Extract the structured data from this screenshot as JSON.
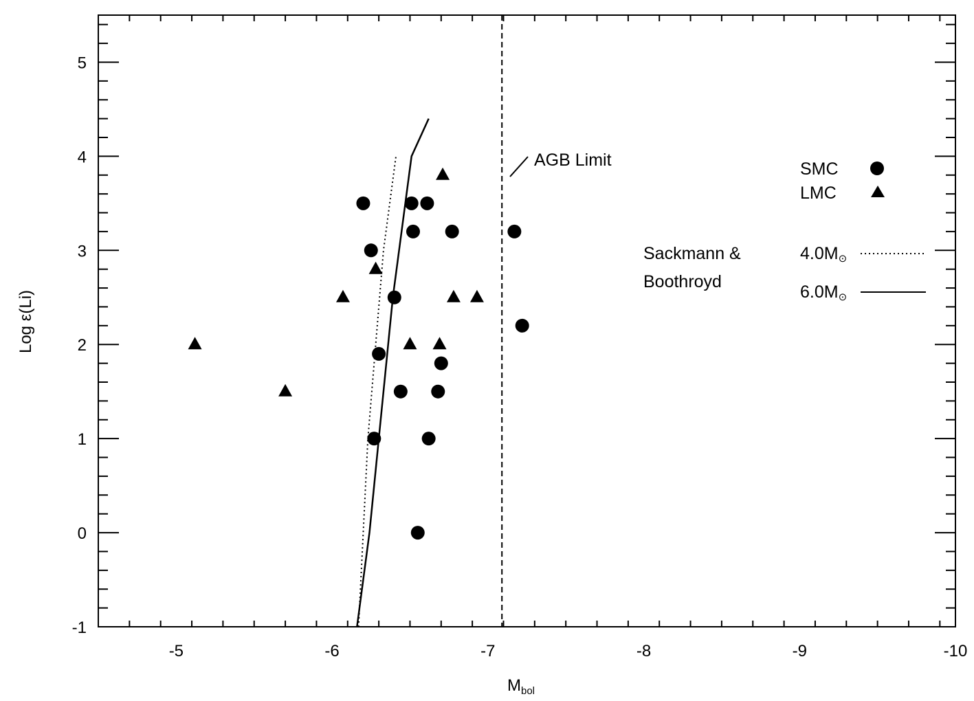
{
  "chart_data": {
    "type": "scatter",
    "title": "",
    "xlabel_main": "M",
    "xlabel_sub": "bol",
    "ylabel": "Log ε(Li)",
    "xlim": [
      -4.5,
      -10
    ],
    "ylim": [
      -1,
      5.5
    ],
    "x_ticks": [
      -5,
      -6,
      -7,
      -8,
      -9,
      -10
    ],
    "y_ticks": [
      -1,
      0,
      1,
      2,
      3,
      4,
      5
    ],
    "x_tick_labels": [
      "-5",
      "-6",
      "-7",
      "-8",
      "-9",
      "-10"
    ],
    "y_tick_labels": [
      "-1",
      "0",
      "1",
      "2",
      "3",
      "4",
      "5"
    ],
    "grid": false,
    "legend_position": "right",
    "series": [
      {
        "name": "SMC",
        "marker": "circle",
        "points": [
          {
            "x": -6.2,
            "y": 3.5
          },
          {
            "x": -6.51,
            "y": 3.5
          },
          {
            "x": -6.61,
            "y": 3.5
          },
          {
            "x": -6.25,
            "y": 3.0
          },
          {
            "x": -6.52,
            "y": 3.2
          },
          {
            "x": -6.77,
            "y": 3.2
          },
          {
            "x": -7.17,
            "y": 3.2
          },
          {
            "x": -6.4,
            "y": 2.5
          },
          {
            "x": -7.22,
            "y": 2.2
          },
          {
            "x": -6.3,
            "y": 1.9
          },
          {
            "x": -6.7,
            "y": 1.8
          },
          {
            "x": -6.44,
            "y": 1.5
          },
          {
            "x": -6.68,
            "y": 1.5
          },
          {
            "x": -6.27,
            "y": 1.0
          },
          {
            "x": -6.62,
            "y": 1.0
          },
          {
            "x": -6.55,
            "y": 0.0
          }
        ]
      },
      {
        "name": "LMC",
        "marker": "triangle",
        "points": [
          {
            "x": -6.71,
            "y": 3.8
          },
          {
            "x": -6.28,
            "y": 2.8
          },
          {
            "x": -6.07,
            "y": 2.5
          },
          {
            "x": -6.78,
            "y": 2.5
          },
          {
            "x": -6.93,
            "y": 2.5
          },
          {
            "x": -5.12,
            "y": 2.0
          },
          {
            "x": -6.5,
            "y": 2.0
          },
          {
            "x": -6.69,
            "y": 2.0
          },
          {
            "x": -5.7,
            "y": 1.5
          }
        ]
      }
    ],
    "model_lines": [
      {
        "name": "4.0M",
        "style": "dotted",
        "points": [
          {
            "x": -6.17,
            "y": -1.0
          },
          {
            "x": -6.23,
            "y": 1.0
          },
          {
            "x": -6.33,
            "y": 3.0
          },
          {
            "x": -6.41,
            "y": 4.0
          }
        ]
      },
      {
        "name": "6.0M",
        "style": "solid",
        "points": [
          {
            "x": -6.16,
            "y": -1.0
          },
          {
            "x": -6.24,
            "y": 0.0
          },
          {
            "x": -6.3,
            "y": 1.0
          },
          {
            "x": -6.39,
            "y": 2.5
          },
          {
            "x": -6.51,
            "y": 4.0
          },
          {
            "x": -6.62,
            "y": 4.4
          }
        ]
      }
    ],
    "agb_limit": {
      "x": -7.09,
      "label": "AGB Limit"
    },
    "legend": {
      "smc_label": "SMC",
      "lmc_label": "LMC",
      "model_heading_line1": "Sackmann &",
      "model_heading_line2": "Boothroyd",
      "model_4_label": "4.0M",
      "model_6_label": "6.0M",
      "sun_symbol": "⊙"
    }
  }
}
